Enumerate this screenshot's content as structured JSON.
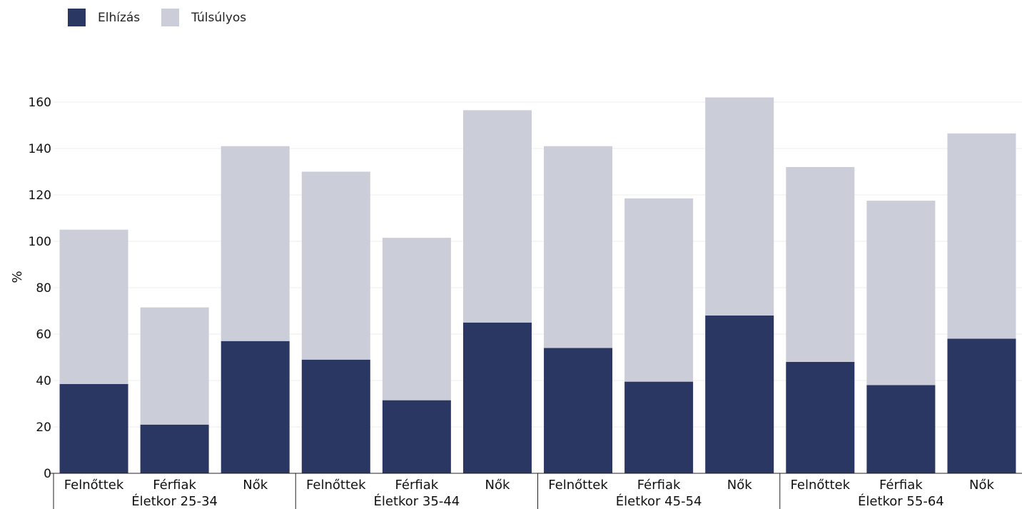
{
  "chart_data": {
    "type": "bar",
    "stacked": true,
    "ylabel": "%",
    "ylim": [
      0,
      160
    ],
    "yticks": [
      0,
      20,
      40,
      60,
      80,
      100,
      120,
      140,
      160
    ],
    "grid": true,
    "legend_position": "top-left",
    "categories": [
      "Felnőttek",
      "Férfiak",
      "Nők",
      "Felnőttek",
      "Férfiak",
      "Nők",
      "Felnőttek",
      "Férfiak",
      "Nők",
      "Felnőttek",
      "Férfiak",
      "Nők"
    ],
    "groups": [
      {
        "label": "Életkor 25-34",
        "size": 3
      },
      {
        "label": "Életkor 35-44",
        "size": 3
      },
      {
        "label": "Életkor 45-54",
        "size": 3
      },
      {
        "label": "Életkor 55-64",
        "size": 3
      }
    ],
    "series": [
      {
        "name": "Elhízás",
        "color": "#2b3763",
        "values": [
          38.5,
          21,
          57,
          49,
          31.5,
          65,
          54,
          39.5,
          68,
          48,
          38,
          58
        ]
      },
      {
        "name": "Túlsúlyos",
        "color": "#cbcdd8",
        "values": [
          66.5,
          50.5,
          84,
          81,
          70,
          91.5,
          87,
          79,
          94,
          84,
          79.5,
          88.5
        ]
      }
    ]
  }
}
